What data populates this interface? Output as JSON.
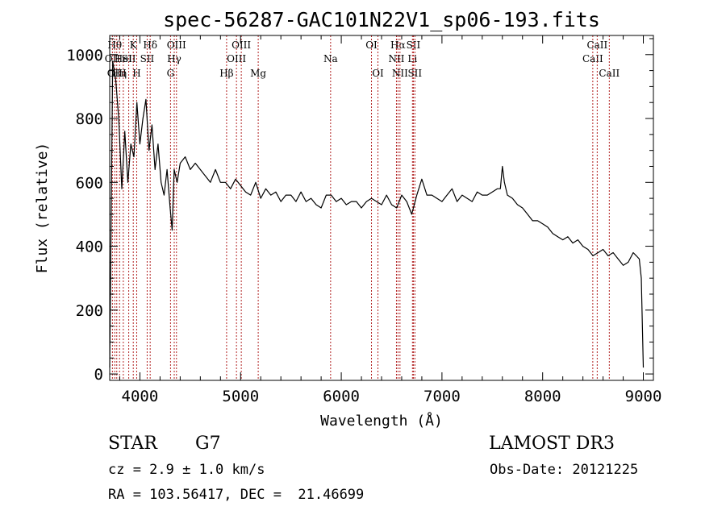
{
  "chart_data": {
    "type": "line",
    "title": "spec-56287-GAC101N22V1_sp06-193.fits",
    "xlabel": "Wavelength (Å)",
    "ylabel": "Flux (relative)",
    "xlim": [
      3700,
      9100
    ],
    "ylim": [
      -20,
      1060
    ],
    "xticks": [
      4000,
      5000,
      6000,
      7000,
      8000,
      9000
    ],
    "yticks": [
      0,
      200,
      400,
      600,
      800,
      1000
    ],
    "xtick_labels": [
      "4000",
      "5000",
      "6000",
      "7000",
      "8000",
      "9000"
    ],
    "ytick_labels": [
      "0",
      "200",
      "400",
      "600",
      "800",
      "1000"
    ],
    "line_color": "#000000",
    "marker_color": "#b22222",
    "spectrum": {
      "x": [
        3700,
        3730,
        3760,
        3790,
        3820,
        3850,
        3880,
        3910,
        3940,
        3970,
        4000,
        4030,
        4060,
        4090,
        4120,
        4150,
        4180,
        4210,
        4240,
        4270,
        4300,
        4320,
        4340,
        4370,
        4400,
        4450,
        4500,
        4550,
        4600,
        4650,
        4700,
        4750,
        4800,
        4850,
        4900,
        4950,
        5000,
        5050,
        5100,
        5150,
        5200,
        5250,
        5300,
        5350,
        5400,
        5450,
        5500,
        5550,
        5600,
        5650,
        5700,
        5750,
        5800,
        5850,
        5900,
        5950,
        6000,
        6050,
        6100,
        6150,
        6200,
        6250,
        6300,
        6350,
        6400,
        6450,
        6500,
        6550,
        6600,
        6650,
        6700,
        6750,
        6800,
        6850,
        6900,
        6950,
        7000,
        7050,
        7100,
        7150,
        7200,
        7250,
        7300,
        7350,
        7400,
        7450,
        7500,
        7550,
        7580,
        7600,
        7620,
        7650,
        7700,
        7750,
        7800,
        7850,
        7900,
        7950,
        8000,
        8050,
        8100,
        8150,
        8200,
        8250,
        8300,
        8350,
        8400,
        8450,
        8500,
        8550,
        8600,
        8650,
        8700,
        8750,
        8800,
        8850,
        8900,
        8930,
        8960,
        8980,
        9000
      ],
      "y": [
        20,
        980,
        920,
        800,
        580,
        760,
        600,
        720,
        680,
        850,
        720,
        800,
        860,
        700,
        780,
        640,
        720,
        600,
        560,
        640,
        520,
        450,
        640,
        600,
        660,
        680,
        640,
        660,
        640,
        620,
        600,
        640,
        600,
        600,
        580,
        610,
        590,
        570,
        560,
        600,
        550,
        580,
        560,
        570,
        540,
        560,
        560,
        540,
        570,
        540,
        550,
        530,
        520,
        560,
        560,
        540,
        550,
        530,
        540,
        540,
        520,
        540,
        550,
        540,
        530,
        560,
        530,
        520,
        560,
        540,
        500,
        560,
        610,
        560,
        560,
        550,
        540,
        560,
        580,
        540,
        560,
        550,
        540,
        570,
        560,
        560,
        570,
        580,
        580,
        650,
        600,
        560,
        550,
        530,
        520,
        500,
        480,
        480,
        470,
        460,
        440,
        430,
        420,
        430,
        410,
        420,
        400,
        390,
        370,
        380,
        390,
        370,
        380,
        360,
        340,
        350,
        380,
        370,
        360,
        300,
        20
      ]
    },
    "line_markers": [
      {
        "x": 3727,
        "label": "OII",
        "row": 1
      },
      {
        "x": 3750,
        "label": "Hθ",
        "row": 0
      },
      {
        "x": 3770,
        "label": "OIII",
        "row": 2
      },
      {
        "x": 3798,
        "label": "Hη",
        "row": 2
      },
      {
        "x": 3835,
        "label": "HeI",
        "row": 1
      },
      {
        "x": 3889,
        "label": "SII",
        "row": 1
      },
      {
        "x": 3934,
        "label": "K",
        "row": 0
      },
      {
        "x": 3968,
        "label": "H",
        "row": 2
      },
      {
        "x": 4072,
        "label": "SII",
        "row": 1
      },
      {
        "x": 4102,
        "label": "Hδ",
        "row": 0
      },
      {
        "x": 4304,
        "label": "G",
        "row": 2
      },
      {
        "x": 4341,
        "label": "Hγ",
        "row": 1
      },
      {
        "x": 4363,
        "label": "OIII",
        "row": 0
      },
      {
        "x": 4861,
        "label": "Hβ",
        "row": 2
      },
      {
        "x": 4959,
        "label": "OIII",
        "row": 1
      },
      {
        "x": 5007,
        "label": "OIII",
        "row": 0
      },
      {
        "x": 5175,
        "label": "Mg",
        "row": 2
      },
      {
        "x": 5894,
        "label": "Na",
        "row": 1
      },
      {
        "x": 6300,
        "label": "OI",
        "row": 0
      },
      {
        "x": 6364,
        "label": "OI",
        "row": 2
      },
      {
        "x": 6548,
        "label": "NII",
        "row": 1
      },
      {
        "x": 6563,
        "label": "Hα",
        "row": 0
      },
      {
        "x": 6583,
        "label": "NII",
        "row": 2
      },
      {
        "x": 6707,
        "label": "Li",
        "row": 1
      },
      {
        "x": 6716,
        "label": "SII",
        "row": 0
      },
      {
        "x": 6731,
        "label": "SII",
        "row": 2
      },
      {
        "x": 8498,
        "label": "CaII",
        "row": 1
      },
      {
        "x": 8542,
        "label": "CaII",
        "row": 0
      },
      {
        "x": 8662,
        "label": "CaII",
        "row": 2
      }
    ]
  },
  "info": {
    "class": "STAR",
    "subclass": "G7",
    "survey": "LAMOST DR3",
    "redshift": "cz = 2.9 ± 1.0 km/s",
    "obs_date": "Obs-Date: 20121225",
    "coords": "RA = 103.56417, DEC =  21.46699"
  }
}
